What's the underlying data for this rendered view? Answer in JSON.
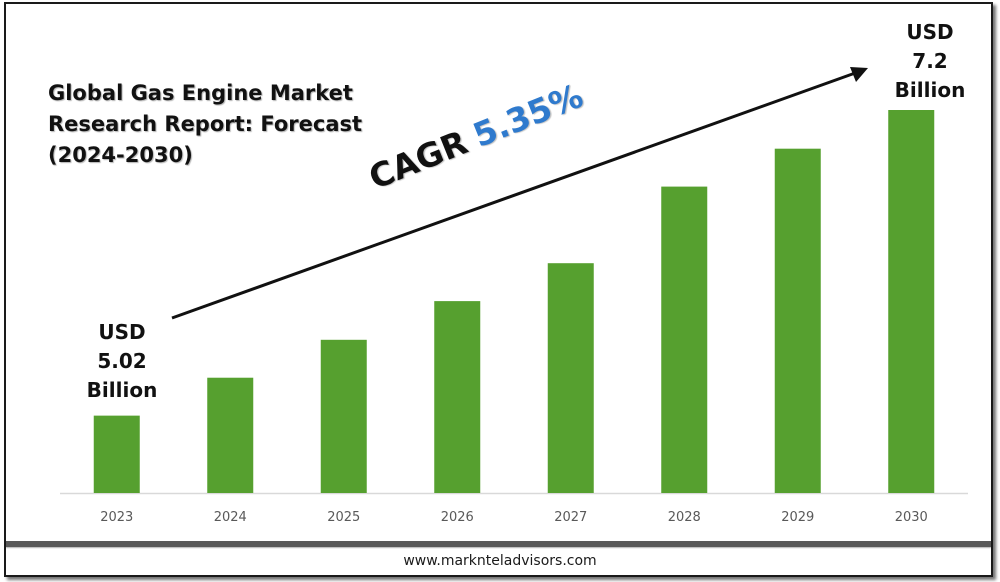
{
  "title_lines": [
    "Global Gas Engine Market",
    "Research Report: Forecast",
    "(2024-2030)"
  ],
  "callouts": {
    "start": [
      "USD",
      "5.02",
      "Billion"
    ],
    "end": [
      "USD",
      "7.2",
      "Billion"
    ]
  },
  "cagr": {
    "label": "CAGR",
    "value": "5.35%"
  },
  "footer": {
    "url": "www.marknteladvisors.com"
  },
  "colors": {
    "bar": "#56A02F",
    "cagr_value": "#2F7ACD",
    "axis": "#D9D9D9",
    "tick_text": "#595959"
  },
  "chart_data": {
    "type": "bar",
    "title": "Global Gas Engine Market Research Report: Forecast (2024-2030)",
    "categories": [
      "2023",
      "2024",
      "2025",
      "2026",
      "2027",
      "2028",
      "2029",
      "2030"
    ],
    "series": [
      {
        "values": [
          1.0,
          1.49,
          1.98,
          2.48,
          2.97,
          3.96,
          4.45,
          4.95
        ]
      }
    ],
    "ylim": [
      0,
      5.25
    ],
    "grid": false,
    "legend": "none"
  }
}
